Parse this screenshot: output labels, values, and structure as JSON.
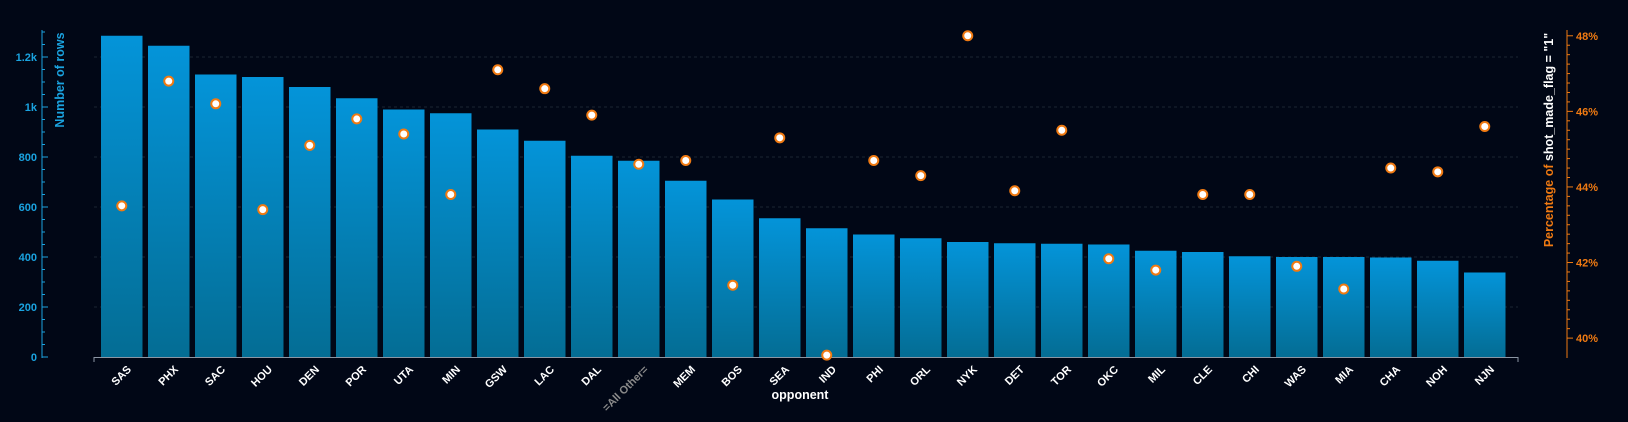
{
  "chart_data": {
    "type": "bar",
    "xlabel": "opponent",
    "ylabel": "Number of rows",
    "y2label_prefix": "Percentage of ",
    "y2label_field": "shot_made_flag = \"1\"",
    "categories": [
      "SAS",
      "PHX",
      "SAC",
      "HOU",
      "DEN",
      "POR",
      "UTA",
      "MIN",
      "GSW",
      "LAC",
      "DAL",
      "=All Other=",
      "MEM",
      "BOS",
      "SEA",
      "IND",
      "PHI",
      "ORL",
      "NYK",
      "DET",
      "TOR",
      "OKC",
      "MIL",
      "CLE",
      "CHI",
      "WAS",
      "MIA",
      "CHA",
      "NOH",
      "NJN"
    ],
    "ylim": [
      0,
      1300
    ],
    "y_ticks": [
      0,
      200,
      400,
      600,
      800,
      1000,
      1200
    ],
    "y_tick_labels": [
      "0",
      "200",
      "400",
      "600",
      "800",
      "1k",
      "1.2k"
    ],
    "y2lim": [
      39.5,
      48.1
    ],
    "y2_ticks": [
      40,
      42,
      44,
      46,
      48
    ],
    "y2_tick_labels": [
      "40%",
      "42%",
      "44%",
      "46%",
      "48%"
    ],
    "grid": true,
    "series": [
      {
        "name": "Number of rows",
        "axis": "left",
        "type": "bar",
        "values": [
          1285,
          1245,
          1130,
          1120,
          1080,
          1035,
          990,
          975,
          910,
          865,
          805,
          785,
          705,
          630,
          555,
          515,
          490,
          475,
          460,
          455,
          453,
          450,
          425,
          420,
          403,
          400,
          400,
          398,
          385,
          338
        ]
      },
      {
        "name": "Percentage of shot_made_flag = \"1\"",
        "axis": "right",
        "type": "scatter",
        "values": [
          43.5,
          46.8,
          46.2,
          43.4,
          45.1,
          45.8,
          45.4,
          43.8,
          47.1,
          46.6,
          45.9,
          44.6,
          44.7,
          41.4,
          45.3,
          39.55,
          44.7,
          44.3,
          48.0,
          43.9,
          45.5,
          42.1,
          41.8,
          43.8,
          43.8,
          41.9,
          41.3,
          44.5,
          44.4,
          45.6
        ]
      }
    ],
    "colors": {
      "bar_top": "#0494d9",
      "bar_bottom": "#046d94",
      "left_axis": "#1aa3e0",
      "right_axis": "#f07a12",
      "marker_fill": "#ffffff",
      "marker_stroke": "#f07a12",
      "background": "#010716"
    }
  }
}
